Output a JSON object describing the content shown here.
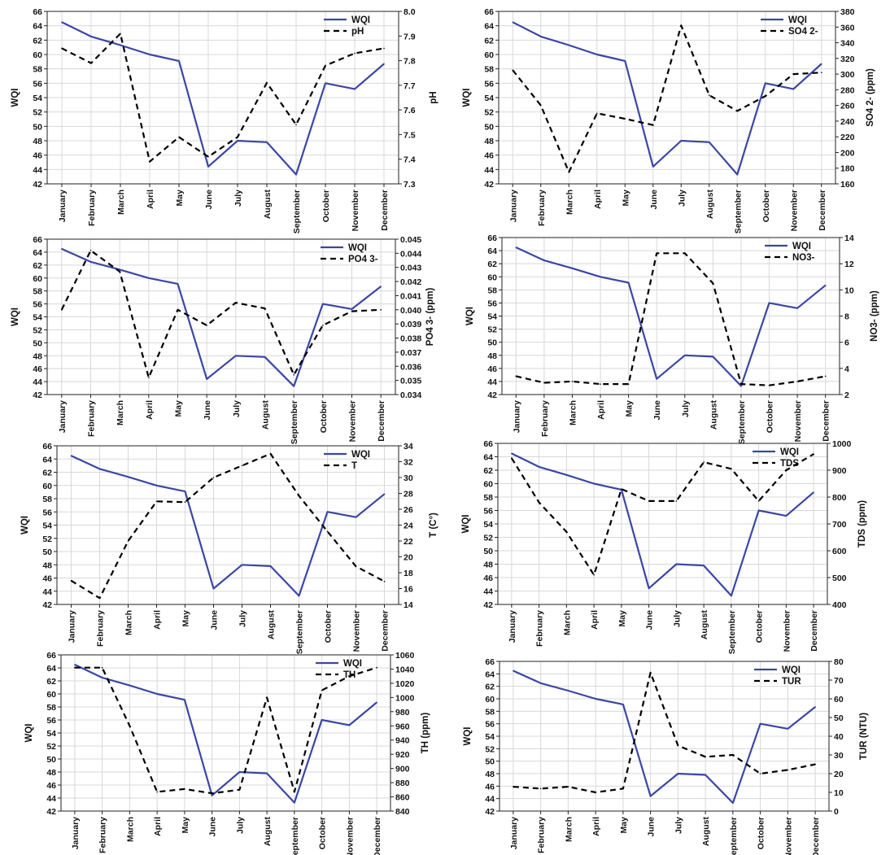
{
  "chart_data": [
    {
      "type": "line",
      "categories": [
        "January",
        "February",
        "March",
        "April",
        "May",
        "June",
        "July",
        "August",
        "September",
        "October",
        "November",
        "December"
      ],
      "ylabel": "WQI",
      "ylabel_right": "pH",
      "ylim": [
        42,
        66
      ],
      "yticks": [
        42,
        44,
        46,
        48,
        50,
        52,
        54,
        56,
        58,
        60,
        62,
        64,
        66
      ],
      "ylim_right": [
        7.3,
        8.0
      ],
      "yticks_right": [
        "7.3",
        "7.4",
        "7.5",
        "7.6",
        "7.7",
        "7.8",
        "7.9",
        "8.0"
      ],
      "legend": "top-right",
      "grid": true,
      "series": [
        {
          "name": "WQI",
          "axis": "left",
          "style": "solid",
          "values": [
            64.5,
            62.5,
            61.3,
            60.0,
            59.1,
            44.4,
            48.0,
            47.8,
            43.3,
            56.0,
            55.2,
            58.7
          ]
        },
        {
          "name": "pH",
          "axis": "right",
          "style": "dashed",
          "values": [
            7.85,
            7.79,
            7.91,
            7.39,
            7.49,
            7.41,
            7.49,
            7.71,
            7.54,
            7.78,
            7.83,
            7.85
          ]
        }
      ]
    },
    {
      "type": "line",
      "categories": [
        "January",
        "February",
        "March",
        "April",
        "May",
        "June",
        "July",
        "August",
        "September",
        "October",
        "November",
        "December"
      ],
      "ylabel": "WQI",
      "ylabel_right": "SO4 2- (ppm)",
      "ylim": [
        42,
        66
      ],
      "yticks": [
        42,
        44,
        46,
        48,
        50,
        52,
        54,
        56,
        58,
        60,
        62,
        64,
        66
      ],
      "ylim_right": [
        160,
        380
      ],
      "yticks_right": [
        "160",
        "180",
        "200",
        "220",
        "240",
        "260",
        "280",
        "300",
        "320",
        "340",
        "360",
        "380"
      ],
      "legend": "top-right",
      "grid": true,
      "series": [
        {
          "name": "WQI",
          "axis": "left",
          "style": "solid",
          "values": [
            64.5,
            62.5,
            61.3,
            60.0,
            59.1,
            44.4,
            48.0,
            47.8,
            43.3,
            56.0,
            55.2,
            58.7
          ]
        },
        {
          "name": "SO4 2-",
          "axis": "right",
          "style": "dashed",
          "values": [
            305,
            260,
            175,
            250,
            243,
            235,
            362,
            273,
            253,
            272,
            300,
            302
          ]
        }
      ]
    },
    {
      "type": "line",
      "categories": [
        "January",
        "February",
        "March",
        "April",
        "May",
        "June",
        "July",
        "August",
        "September",
        "October",
        "November",
        "December"
      ],
      "ylabel": "WQI",
      "ylabel_right": "PO4 3- (ppm)",
      "ylim": [
        42,
        66
      ],
      "yticks": [
        42,
        44,
        46,
        48,
        50,
        52,
        54,
        56,
        58,
        60,
        62,
        64,
        66
      ],
      "ylim_right": [
        0.034,
        0.045
      ],
      "yticks_right": [
        "0.034",
        "0.035",
        "0.036",
        "0.037",
        "0.038",
        "0.039",
        "0.040",
        "0.041",
        "0.042",
        "0.043",
        "0.044",
        "0.045"
      ],
      "legend": "top-right",
      "grid": true,
      "series": [
        {
          "name": "WQI",
          "axis": "left",
          "style": "solid",
          "values": [
            64.5,
            62.5,
            61.3,
            60.0,
            59.1,
            44.4,
            48.0,
            47.8,
            43.3,
            56.0,
            55.2,
            58.7
          ]
        },
        {
          "name": "PO4 3-",
          "axis": "right",
          "style": "dashed",
          "values": [
            0.04,
            0.0442,
            0.0427,
            0.0352,
            0.04,
            0.0389,
            0.0405,
            0.0401,
            0.0354,
            0.0389,
            0.0399,
            0.04
          ]
        }
      ]
    },
    {
      "type": "line",
      "categories": [
        "January",
        "February",
        "March",
        "April",
        "May",
        "June",
        "July",
        "August",
        "September",
        "October",
        "November",
        "December"
      ],
      "ylabel": "WQI",
      "ylabel_right": "NO3- (ppm)",
      "ylim": [
        42,
        66
      ],
      "yticks": [
        42,
        44,
        46,
        48,
        50,
        52,
        54,
        56,
        58,
        60,
        62,
        64,
        66
      ],
      "ylim_right": [
        2,
        14
      ],
      "yticks_right": [
        "2",
        "4",
        "6",
        "8",
        "10",
        "12",
        "14"
      ],
      "legend": "top-right",
      "grid": true,
      "series": [
        {
          "name": "WQI",
          "axis": "left",
          "style": "solid",
          "values": [
            64.5,
            62.5,
            61.3,
            60.0,
            59.1,
            44.4,
            48.0,
            47.8,
            43.3,
            56.0,
            55.2,
            58.7
          ]
        },
        {
          "name": "NO3-",
          "axis": "right",
          "style": "dashed",
          "values": [
            3.4,
            2.9,
            3.0,
            2.8,
            2.8,
            12.8,
            12.8,
            10.5,
            2.8,
            2.7,
            3.0,
            3.4
          ]
        }
      ]
    },
    {
      "type": "line",
      "categories": [
        "January",
        "February",
        "March",
        "April",
        "May",
        "June",
        "July",
        "August",
        "September",
        "October",
        "November",
        "December"
      ],
      "ylabel": "WQI",
      "ylabel_right": "T (C°)",
      "ylim": [
        42,
        66
      ],
      "yticks": [
        42,
        44,
        46,
        48,
        50,
        52,
        54,
        56,
        58,
        60,
        62,
        64,
        66
      ],
      "ylim_right": [
        14,
        34
      ],
      "yticks_right": [
        "14",
        "16",
        "18",
        "20",
        "22",
        "24",
        "26",
        "28",
        "30",
        "32",
        "34"
      ],
      "legend": "top-right",
      "grid": true,
      "series": [
        {
          "name": "WQI",
          "axis": "left",
          "style": "solid",
          "values": [
            64.5,
            62.5,
            61.3,
            60.0,
            59.1,
            44.4,
            48.0,
            47.8,
            43.3,
            56.0,
            55.2,
            58.7
          ]
        },
        {
          "name": "T",
          "axis": "right",
          "style": "dashed",
          "values": [
            17.0,
            14.8,
            22.0,
            27.0,
            26.9,
            30.0,
            31.5,
            33.0,
            27.7,
            23.2,
            18.8,
            16.9
          ]
        }
      ]
    },
    {
      "type": "line",
      "categories": [
        "January",
        "February",
        "March",
        "April",
        "May",
        "June",
        "July",
        "August",
        "September",
        "October",
        "November",
        "December"
      ],
      "ylabel": "WQI",
      "ylabel_right": "TDS (ppm)",
      "ylim": [
        42,
        66
      ],
      "yticks": [
        42,
        44,
        46,
        48,
        50,
        52,
        54,
        56,
        58,
        60,
        62,
        64,
        66
      ],
      "ylim_right": [
        400,
        1000
      ],
      "yticks_right": [
        "400",
        "500",
        "600",
        "700",
        "800",
        "900",
        "1000"
      ],
      "legend": "top-right",
      "grid": true,
      "series": [
        {
          "name": "WQI",
          "axis": "left",
          "style": "solid",
          "values": [
            64.5,
            62.5,
            61.3,
            60.0,
            59.1,
            44.4,
            48.0,
            47.8,
            43.3,
            56.0,
            55.2,
            58.7
          ]
        },
        {
          "name": "TDS",
          "axis": "right",
          "style": "dashed",
          "values": [
            945,
            780,
            670,
            510,
            830,
            785,
            785,
            930,
            905,
            785,
            900,
            960
          ]
        }
      ]
    },
    {
      "type": "line",
      "categories": [
        "January",
        "February",
        "March",
        "April",
        "May",
        "June",
        "July",
        "August",
        "September",
        "October",
        "November",
        "December"
      ],
      "ylabel": "WQI",
      "ylabel_right": "TH (ppm)",
      "ylim": [
        42,
        66
      ],
      "yticks": [
        42,
        44,
        46,
        48,
        50,
        52,
        54,
        56,
        58,
        60,
        62,
        64,
        66
      ],
      "ylim_right": [
        840,
        1060
      ],
      "yticks_right": [
        "840",
        "860",
        "880",
        "900",
        "920",
        "940",
        "960",
        "980",
        "1000",
        "1020",
        "1040",
        "1060"
      ],
      "legend": "top-right",
      "grid": true,
      "series": [
        {
          "name": "WQI",
          "axis": "left",
          "style": "solid",
          "values": [
            64.5,
            62.5,
            61.3,
            60.0,
            59.1,
            44.4,
            48.0,
            47.8,
            43.3,
            56.0,
            55.2,
            58.7
          ]
        },
        {
          "name": "TH",
          "axis": "right",
          "style": "dashed",
          "values": [
            1042,
            1042,
            960,
            867,
            871,
            865,
            870,
            1000,
            867,
            1010,
            1030,
            1042
          ]
        }
      ]
    },
    {
      "type": "line",
      "categories": [
        "January",
        "February",
        "March",
        "April",
        "May",
        "June",
        "July",
        "August",
        "September",
        "October",
        "November",
        "December"
      ],
      "ylabel": "WQI",
      "ylabel_right": "TUR (NTU)",
      "ylim": [
        42,
        66
      ],
      "yticks": [
        42,
        44,
        46,
        48,
        50,
        52,
        54,
        56,
        58,
        60,
        62,
        64,
        66
      ],
      "ylim_right": [
        0,
        80
      ],
      "yticks_right": [
        "0",
        "10",
        "20",
        "30",
        "40",
        "50",
        "60",
        "70",
        "80"
      ],
      "legend": "top-right",
      "grid": true,
      "series": [
        {
          "name": "WQI",
          "axis": "left",
          "style": "solid",
          "values": [
            64.5,
            62.5,
            61.3,
            60.0,
            59.1,
            44.4,
            48.0,
            47.8,
            43.3,
            56.0,
            55.2,
            58.7
          ]
        },
        {
          "name": "TUR",
          "axis": "right",
          "style": "dashed",
          "values": [
            13,
            12,
            13,
            10,
            12,
            74,
            35,
            29,
            30,
            20,
            22,
            25
          ]
        }
      ]
    }
  ]
}
